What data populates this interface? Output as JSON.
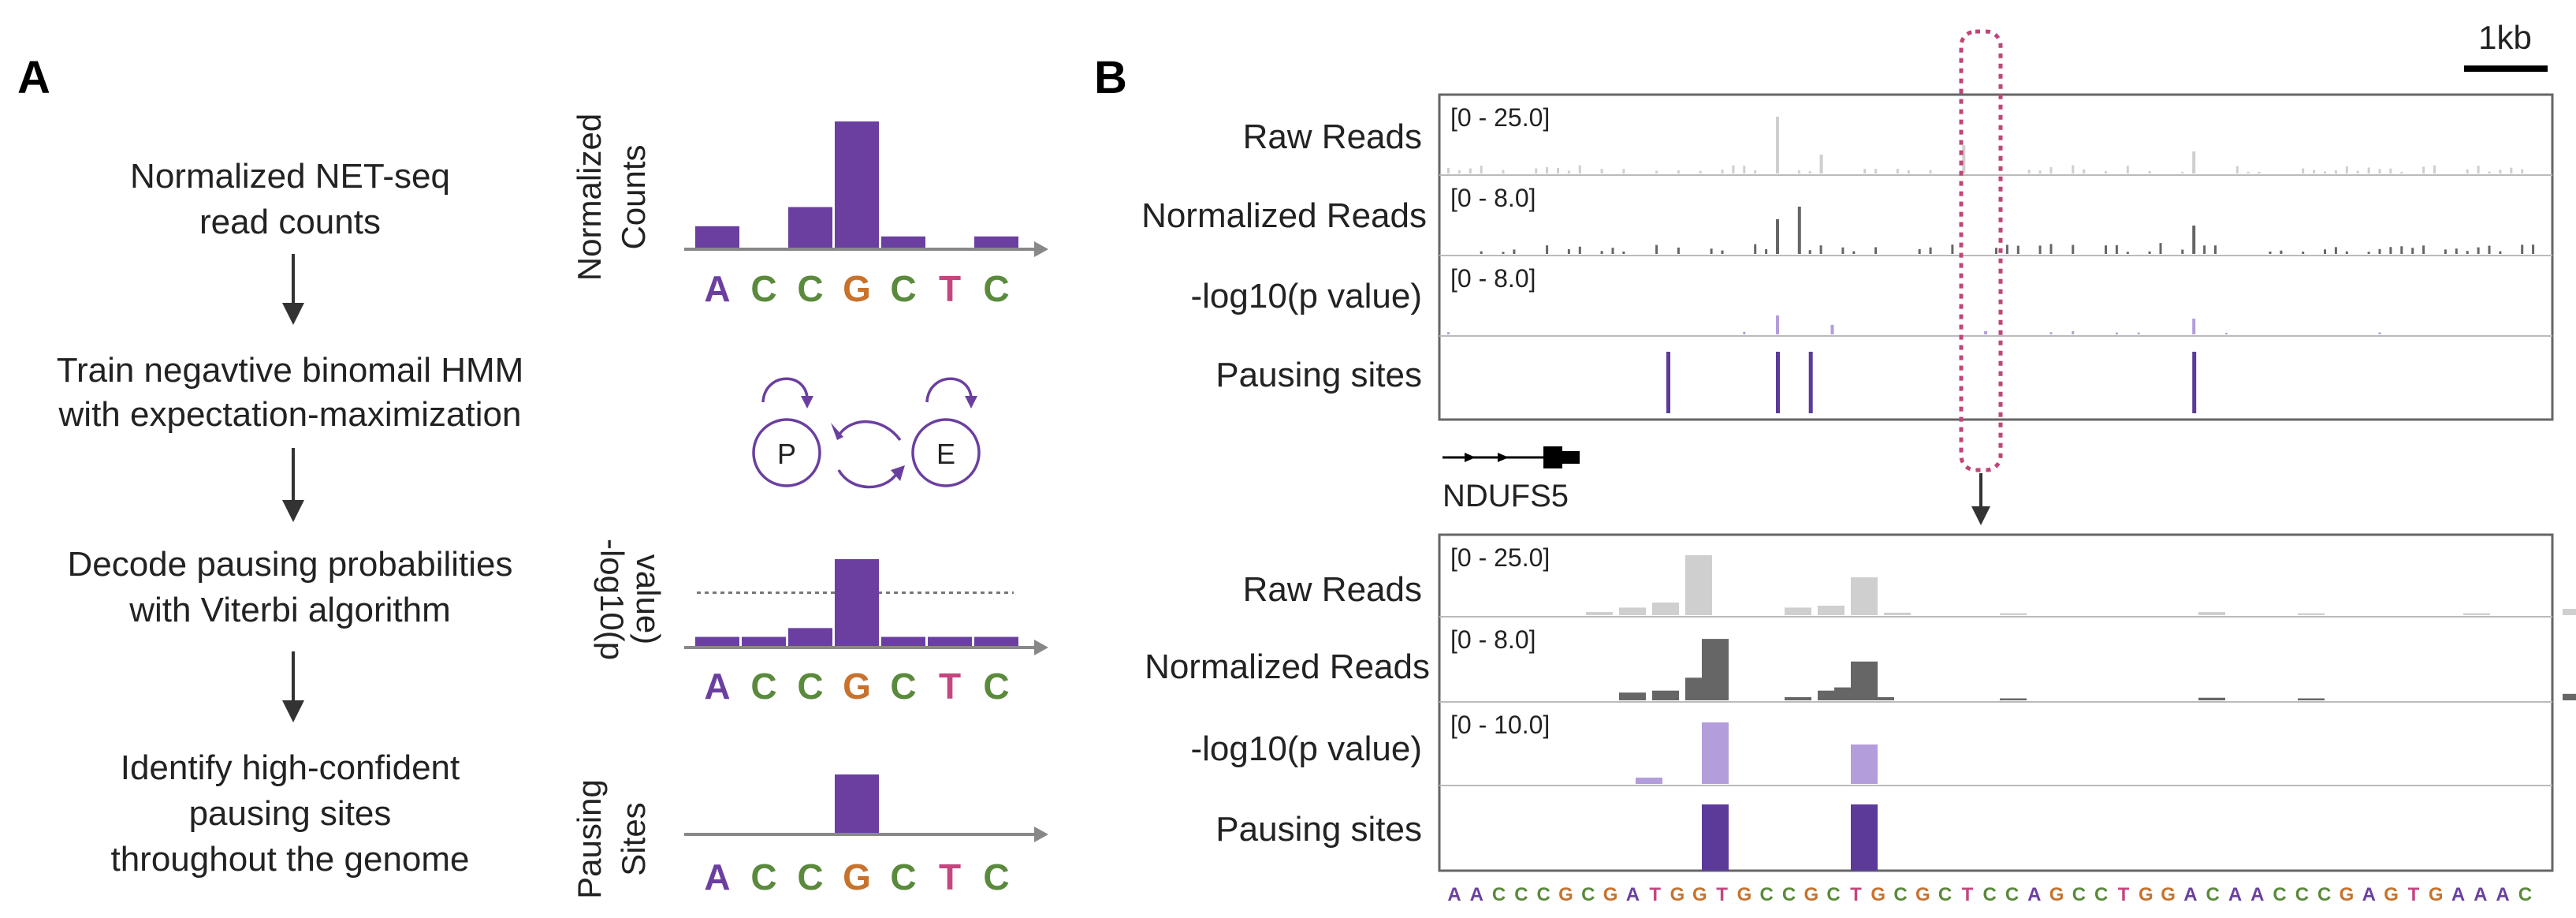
{
  "colors": {
    "purple": "#6b3fa0",
    "purple_dark": "#5b3a9a",
    "light_purple": "#b39ddb",
    "raw_gray": "#cfcfcf",
    "norm_gray": "#666666",
    "axis": "#888888",
    "highlight": "#c0457a",
    "base_A": "#6b3fa0",
    "base_C": "#5a8a3c",
    "base_G": "#c8722c",
    "base_T": "#c4467e",
    "arrow": "#333333"
  },
  "panel_a": {
    "label": "A",
    "steps": [
      {
        "line1": "Normalized NET-seq",
        "line2": "read counts"
      },
      {
        "line1": "Train negavtive binomail HMM",
        "line2": "with expectation-maximization"
      },
      {
        "line1": "Decode pausing probabilities",
        "line2": "with Viterbi algorithm"
      },
      {
        "line1": "Identify high-confident",
        "line2": "pausing sites",
        "line3": "throughout the genome"
      }
    ],
    "sequence": [
      "A",
      "C",
      "C",
      "G",
      "C",
      "T",
      "C"
    ],
    "ylabels": {
      "counts": [
        "Normalized",
        "Counts"
      ],
      "pvalue": [
        "-log10(p",
        "value)"
      ],
      "sites": [
        "Pausing",
        "Sites"
      ]
    },
    "hmm_states": [
      "P",
      "E"
    ],
    "counts_values": [
      0.18,
      0,
      0.33,
      1.0,
      0.1,
      0,
      0.1
    ],
    "pvalue_values": [
      0.12,
      0.12,
      0.22,
      1.0,
      0.12,
      0.12,
      0.12
    ],
    "pvalue_threshold": 0.62,
    "sites_values": [
      0,
      0,
      0,
      1,
      0,
      0,
      0
    ]
  },
  "panel_b": {
    "label": "B",
    "scale_label": "1kb",
    "gene_label": "NDUFS5",
    "top_tracks": [
      {
        "name": "Raw Reads",
        "range": "[0 - 25.0]"
      },
      {
        "name": "Normalized Reads",
        "range": "[0 - 8.0]"
      },
      {
        "name": "-log10(p value)",
        "range": "[0 - 8.0]"
      },
      {
        "name": "Pausing sites",
        "range": ""
      }
    ],
    "zoom_tracks": [
      {
        "name": "Raw Reads",
        "range": "[0 - 25.0]"
      },
      {
        "name": "Normalized Reads",
        "range": "[0 - 8.0]"
      },
      {
        "name": "-log10(p value)",
        "range": "[0 - 10.0]"
      },
      {
        "name": "Pausing sites",
        "range": ""
      }
    ],
    "zoom_sequence": "AACCCGCGATGGTGCCGCTGCGCTCCAGCCTGGACAACCCGAGTGAAAC",
    "zoom_raw": [
      [
        8,
        0.05
      ],
      [
        10,
        0.12
      ],
      [
        12,
        0.2
      ],
      [
        14,
        0.95
      ],
      [
        20,
        0.12
      ],
      [
        22,
        0.15
      ],
      [
        24,
        0.6
      ],
      [
        26,
        0.04
      ],
      [
        33,
        0.03
      ],
      [
        45,
        0.05
      ],
      [
        51,
        0.03
      ],
      [
        61,
        0.03
      ],
      [
        67,
        0.1
      ]
    ],
    "zoom_norm": [
      [
        10,
        0.12
      ],
      [
        12,
        0.15
      ],
      [
        14,
        0.35
      ],
      [
        15,
        0.95
      ],
      [
        20,
        0.05
      ],
      [
        22,
        0.15
      ],
      [
        23,
        0.2
      ],
      [
        24,
        0.6
      ],
      [
        25,
        0.05
      ],
      [
        33,
        0.03
      ],
      [
        45,
        0.04
      ],
      [
        51,
        0.03
      ],
      [
        67,
        0.1
      ]
    ],
    "zoom_pval": [
      [
        11,
        0.08
      ],
      [
        15,
        0.78
      ],
      [
        24,
        0.5
      ]
    ],
    "zoom_sites": [
      15,
      24
    ],
    "top_spikes_raw": [
      [
        30,
        0.9
      ],
      [
        47,
        0.45
      ],
      [
        68,
        0.35
      ],
      [
        34,
        0.3
      ]
    ],
    "top_spikes_norm": [
      [
        30,
        0.55
      ],
      [
        32,
        0.75
      ],
      [
        68,
        0.45
      ]
    ],
    "top_spikes_pval": [
      [
        30,
        0.3
      ],
      [
        35,
        0.15
      ],
      [
        49,
        0.05
      ],
      [
        68,
        0.25
      ]
    ],
    "top_sites": [
      20,
      30,
      33,
      68
    ]
  }
}
